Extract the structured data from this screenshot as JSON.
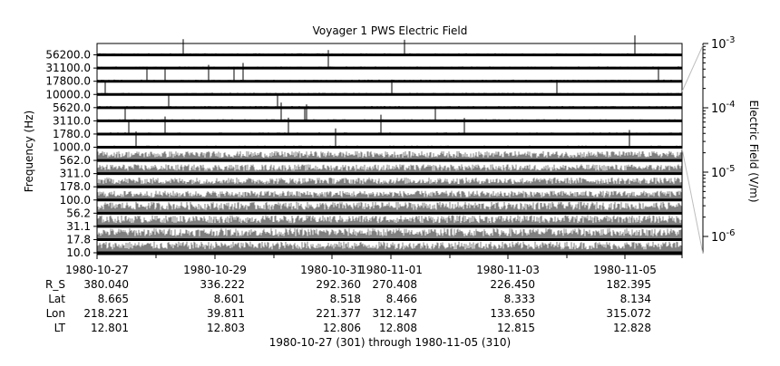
{
  "chart_data": {
    "type": "spectrogram-stackplot",
    "title": "Voyager 1 PWS Electric Field",
    "ylabel": "Frequency (Hz)",
    "zlabel": "Electric Field (V/m)",
    "zscale": "log",
    "zrange": [
      5e-07,
      0.001
    ],
    "z_ticks": [
      "10^-3",
      "10^-4",
      "10^-5",
      "10^-6"
    ],
    "channels": [
      "56200.0",
      "31100.0",
      "17800.0",
      "10000.0",
      "5620.0",
      "3110.0",
      "1780.0",
      "1000.0",
      "562.0",
      "311.0",
      "178.0",
      "100.0",
      "56.2",
      "31.1",
      "17.8",
      "10.0"
    ],
    "x_ticks": [
      "1980-10-27",
      "1980-10-29",
      "1980-10-31",
      "1980-11-01",
      "1980-11-03",
      "1980-11-05"
    ],
    "x_range": [
      "1980-10-27",
      "1980-11-06"
    ],
    "ephemeris": {
      "labels": [
        "R_S",
        "Lat",
        "Lon",
        "LT"
      ],
      "columns": [
        [
          "380.040",
          "8.665",
          "218.221",
          "12.801"
        ],
        [
          "336.222",
          "8.601",
          "39.811",
          "12.803"
        ],
        [
          "292.360",
          "8.518",
          "221.377",
          "12.806"
        ],
        [
          "270.408",
          "8.466",
          "312.147",
          "12.808"
        ],
        [
          "226.450",
          "8.333",
          "133.650",
          "12.815"
        ],
        [
          "182.395",
          "8.134",
          "315.072",
          "12.828"
        ]
      ]
    },
    "footer": "1980-10-27 (301) through 1980-11-05 (310)",
    "colors": {
      "trace": "#000000",
      "noise": "#7f7f7f",
      "axis": "#000000",
      "leader": "#bdbdbd"
    }
  }
}
